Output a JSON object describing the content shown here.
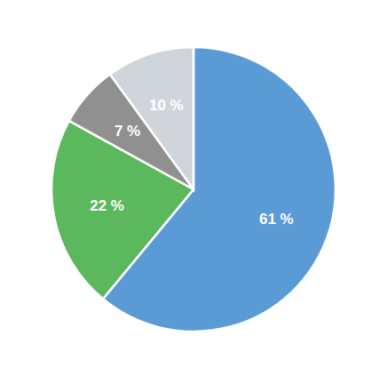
{
  "chart_data": {
    "type": "pie",
    "values": [
      61,
      22,
      7,
      10
    ],
    "value_labels": [
      "61 %",
      "22 %",
      "7 %",
      "10 %"
    ],
    "colors": [
      "#5b9bd5",
      "#5cb85c",
      "#909090",
      "#d0d5db"
    ],
    "data_labels": true
  }
}
